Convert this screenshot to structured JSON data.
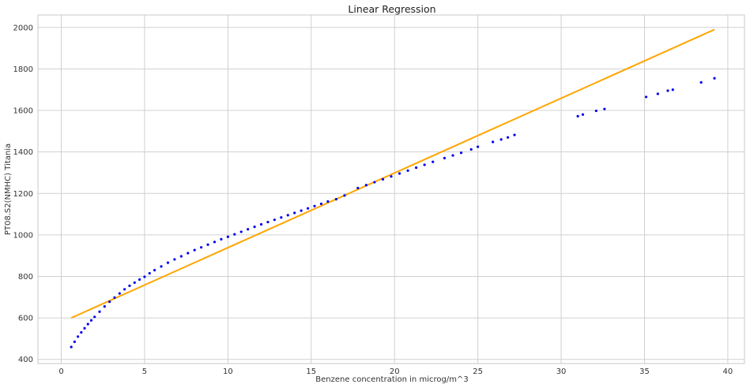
{
  "chart_data": {
    "type": "scatter",
    "title": "Linear Regression",
    "xlabel": "Benzene concentration in microg/m^3",
    "ylabel": "PT08.S2(NMHC) Titania",
    "xlim": [
      -1.4,
      41.0
    ],
    "ylim": [
      380,
      2060
    ],
    "xticks": [
      0,
      5,
      10,
      15,
      20,
      25,
      30,
      35,
      40
    ],
    "yticks": [
      400,
      600,
      800,
      1000,
      1200,
      1400,
      1600,
      1800,
      2000
    ],
    "grid": true,
    "colors": {
      "points": "#0000ee",
      "line": "#ffa500",
      "grid": "#d0d0d0"
    },
    "series": [
      {
        "kind": "scatter",
        "x": [
          0.6,
          0.8,
          1.0,
          1.2,
          1.4,
          1.6,
          1.8,
          2.0,
          2.3,
          2.6,
          2.9,
          3.2,
          3.5,
          3.8,
          4.1,
          4.4,
          4.7,
          5.0,
          5.3,
          5.6,
          6.0,
          6.4,
          6.8,
          7.2,
          7.6,
          8.0,
          8.4,
          8.8,
          9.2,
          9.6,
          10.0,
          10.4,
          10.8,
          11.2,
          11.6,
          12.0,
          12.4,
          12.8,
          13.2,
          13.6,
          14.0,
          14.4,
          14.8,
          15.2,
          15.6,
          16.0,
          16.5,
          17.0,
          17.8,
          18.3,
          18.8,
          19.3,
          19.8,
          20.3,
          20.8,
          21.3,
          21.8,
          22.3,
          23.0,
          23.5,
          24.0,
          24.6,
          25.0,
          25.9,
          26.4,
          26.8,
          27.2,
          31.0,
          31.3,
          32.1,
          32.6,
          35.1,
          35.8,
          36.4,
          36.7,
          38.4,
          39.2
        ],
        "y": [
          460,
          485,
          510,
          530,
          550,
          570,
          588,
          605,
          630,
          655,
          678,
          698,
          718,
          738,
          755,
          770,
          785,
          798,
          815,
          830,
          848,
          866,
          882,
          897,
          912,
          927,
          940,
          953,
          966,
          979,
          991,
          1003,
          1015,
          1027,
          1039,
          1051,
          1062,
          1073,
          1084,
          1095,
          1106,
          1117,
          1128,
          1139,
          1150,
          1161,
          1172,
          1190,
          1226,
          1240,
          1254,
          1268,
          1282,
          1296,
          1310,
          1324,
          1338,
          1352,
          1370,
          1383,
          1396,
          1412,
          1425,
          1448,
          1460,
          1470,
          1482,
          1572,
          1580,
          1598,
          1607,
          1665,
          1680,
          1695,
          1700,
          1735,
          1755
        ]
      },
      {
        "kind": "line",
        "x": [
          0.6,
          39.2
        ],
        "y": [
          600,
          1990
        ]
      }
    ]
  }
}
